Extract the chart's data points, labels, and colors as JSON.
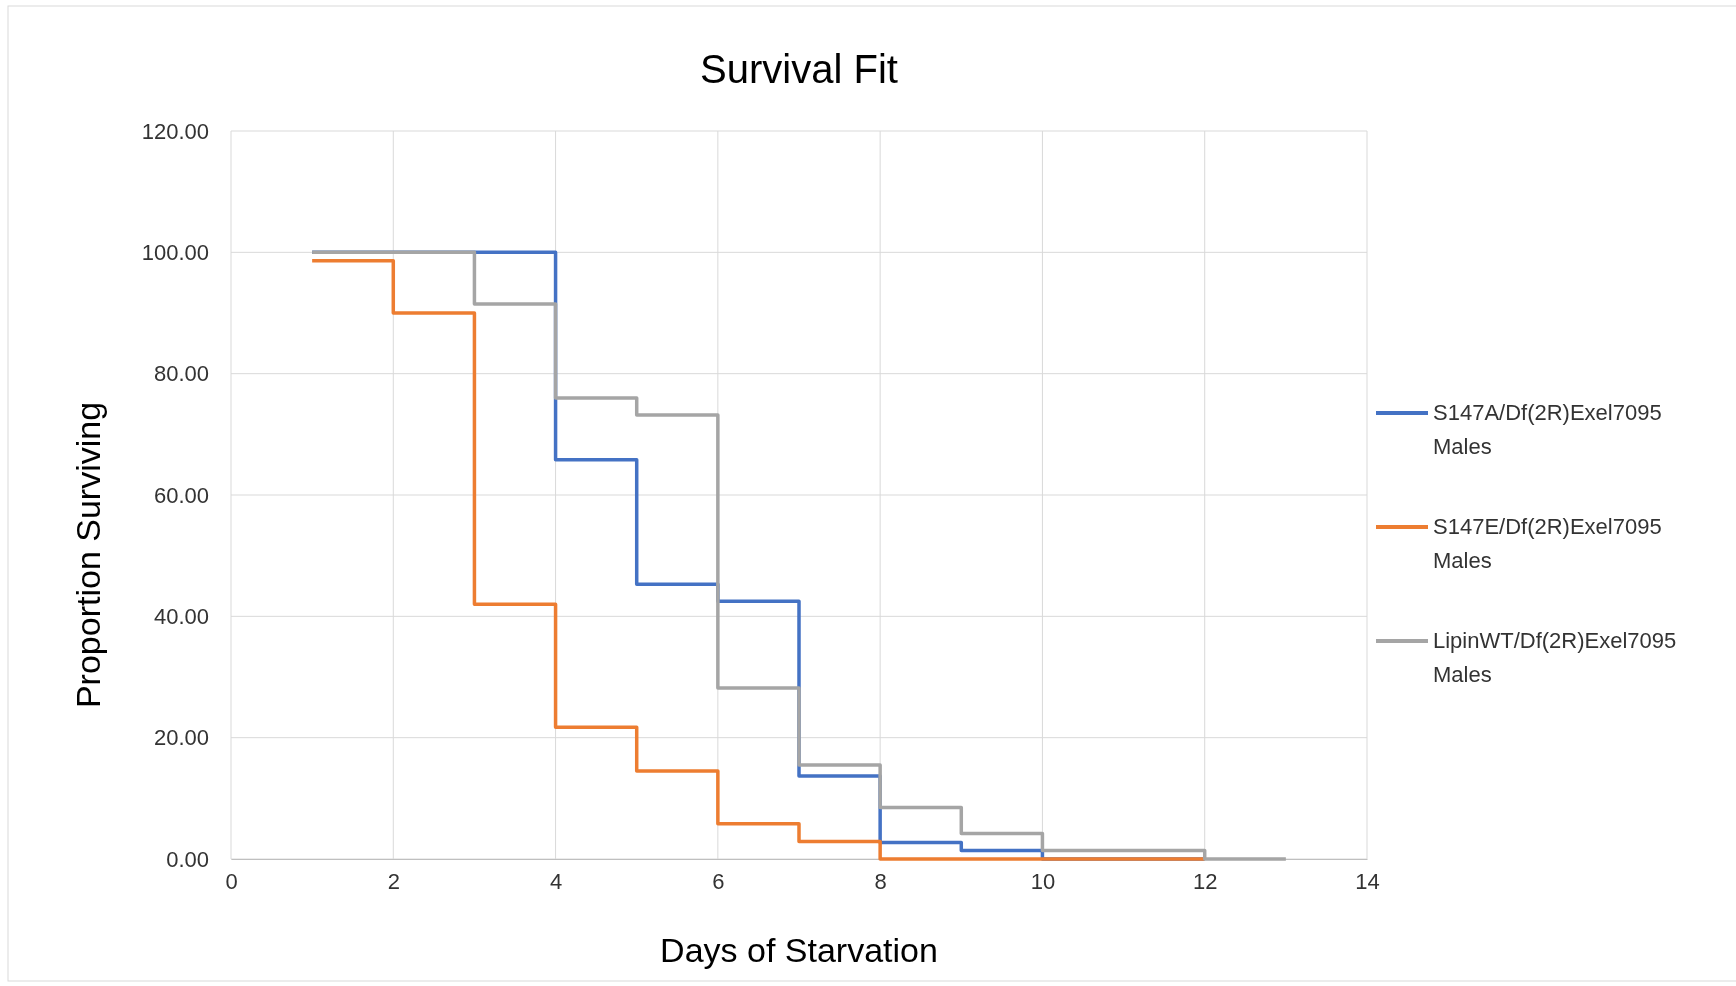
{
  "chart_data": {
    "type": "step",
    "title": "Survival Fit",
    "xlabel": "Days of Starvation",
    "ylabel": "Proportion Surviving",
    "xlim": [
      0,
      14
    ],
    "xticks": [
      0,
      2,
      4,
      6,
      8,
      10,
      12,
      14
    ],
    "ylim": [
      0,
      120
    ],
    "yticks": [
      {
        "value": 0,
        "label": "0.00"
      },
      {
        "value": 20,
        "label": "20.00"
      },
      {
        "value": 40,
        "label": "40.00"
      },
      {
        "value": 60,
        "label": "60.00"
      },
      {
        "value": 80,
        "label": "80.00"
      },
      {
        "value": 100,
        "label": "100.00"
      },
      {
        "value": 120,
        "label": "120.00"
      }
    ],
    "grid": true,
    "legend": "right",
    "marker": "none",
    "line_style": "solid",
    "series": [
      {
        "name": "S147A/Df(2R)Exel7095 Males",
        "color": "#4472c4",
        "x": [
          1,
          4,
          5,
          6,
          7,
          8,
          9,
          10,
          12
        ],
        "values": [
          100,
          65.8,
          45.3,
          42.5,
          13.7,
          2.7,
          1.4,
          0,
          0
        ]
      },
      {
        "name": "S147E/Df(2R)Exel7095 Males",
        "color": "#ed7d31",
        "x": [
          1,
          2,
          3,
          4,
          5,
          6,
          7,
          8,
          12
        ],
        "values": [
          98.6,
          90,
          42,
          21.7,
          14.5,
          5.8,
          2.9,
          0,
          0
        ]
      },
      {
        "name": "LipinWT/Df(2R)Exel7095 Males",
        "color": "#a5a5a5",
        "x": [
          1,
          3,
          4,
          5,
          6,
          7,
          8,
          9,
          10,
          12,
          13
        ],
        "values": [
          100,
          91.5,
          76,
          73.2,
          28.2,
          15.5,
          8.5,
          4.2,
          1.4,
          0,
          0
        ]
      }
    ]
  }
}
